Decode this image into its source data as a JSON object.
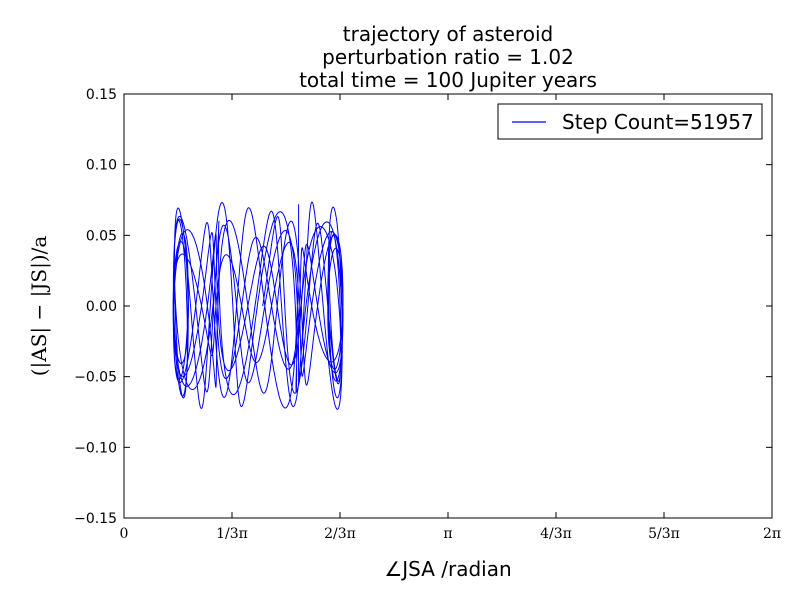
{
  "chart_data": {
    "type": "line",
    "title_lines": [
      "trajectory of asteroid",
      "perturbation ratio = 1.02",
      "total time = 100 Jupiter years"
    ],
    "xlabel": "∠JSA /radian",
    "ylabel": "(|AS| − |JS|)/a",
    "xlim": [
      0,
      6.2832
    ],
    "ylim": [
      -0.15,
      0.15
    ],
    "x_ticks": [
      {
        "value": 0,
        "label": "0"
      },
      {
        "value": 1.0472,
        "label": "1/3π"
      },
      {
        "value": 2.0944,
        "label": "2/3π"
      },
      {
        "value": 3.1416,
        "label": "π"
      },
      {
        "value": 4.1888,
        "label": "4/3π"
      },
      {
        "value": 5.236,
        "label": "5/3π"
      },
      {
        "value": 6.2832,
        "label": "2π"
      }
    ],
    "y_ticks": [
      {
        "value": 0.15,
        "label": "0.15"
      },
      {
        "value": 0.1,
        "label": "0.10"
      },
      {
        "value": 0.05,
        "label": "0.05"
      },
      {
        "value": 0.0,
        "label": "0.00"
      },
      {
        "value": -0.05,
        "label": "−0.05"
      },
      {
        "value": -0.1,
        "label": "−0.10"
      },
      {
        "value": -0.15,
        "label": "−0.15"
      }
    ],
    "grid": false,
    "legend": {
      "placement": "top-right"
    },
    "series": [
      {
        "name": "Step Count=51957",
        "color": "#0000ff",
        "x_range": [
          0.43,
          2.17
        ],
        "y_range": [
          -0.077,
          0.076
        ]
      }
    ]
  }
}
